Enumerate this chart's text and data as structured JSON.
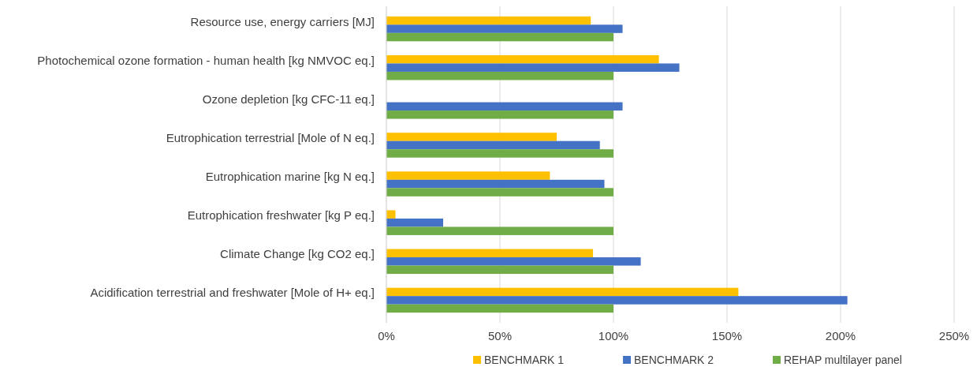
{
  "chart_data": {
    "type": "bar",
    "orientation": "horizontal",
    "categories": [
      "Resource use, energy carriers [MJ]",
      "Photochemical ozone formation - human health [kg NMVOC eq.]",
      "Ozone depletion [kg CFC-11 eq.]",
      "Eutrophication terrestrial [Mole of N eq.]",
      "Eutrophication marine [kg N eq.]",
      "Eutrophication freshwater [kg P eq.]",
      "Climate Change [kg CO2 eq.]",
      "Acidification terrestrial and freshwater [Mole of H+ eq.]"
    ],
    "series": [
      {
        "name": "BENCHMARK 1",
        "color": "#ffc000",
        "values": [
          90,
          120,
          null,
          75,
          72,
          4,
          91,
          155
        ]
      },
      {
        "name": "BENCHMARK 2",
        "color": "#4472c4",
        "values": [
          104,
          129,
          104,
          94,
          96,
          25,
          112,
          203
        ]
      },
      {
        "name": "REHAP multilayer panel",
        "color": "#70ad47",
        "values": [
          100,
          100,
          100,
          100,
          100,
          100,
          100,
          100
        ]
      }
    ],
    "xlim": [
      0,
      250
    ],
    "xticks": [
      {
        "value": 0,
        "label": "0%"
      },
      {
        "value": 50,
        "label": "50%"
      },
      {
        "value": 100,
        "label": "100%"
      },
      {
        "value": 150,
        "label": "150%"
      },
      {
        "value": 200,
        "label": "200%"
      },
      {
        "value": 250,
        "label": "250%"
      }
    ],
    "grid": "x",
    "legend": "bottom"
  }
}
